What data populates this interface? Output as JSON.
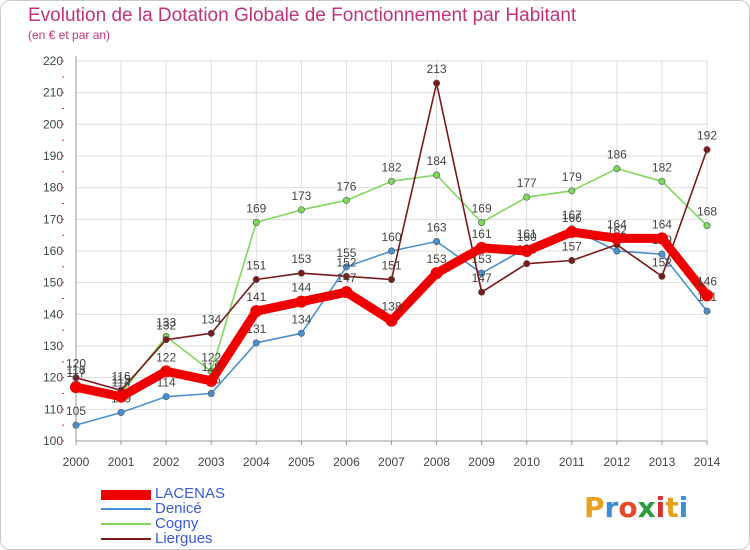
{
  "header": {
    "title": "Evolution de la Dotation Globale de Fonctionnement par Habitant",
    "subtitle": "(en € et par an)"
  },
  "logo_text": "Proxiti",
  "logo_colors": [
    "#e8a020",
    "#3a8fd8",
    "#e24a2a",
    "#2a9a3a",
    "#d83030",
    "#e8a020",
    "#3a8fd8"
  ],
  "chart_data": {
    "type": "line",
    "title": "Evolution de la Dotation Globale de Fonctionnement par Habitant",
    "subtitle": "(en € et par an)",
    "x": [
      "2000",
      "2001",
      "2002",
      "2003",
      "2004",
      "2005",
      "2006",
      "2007",
      "2008",
      "2009",
      "2010",
      "2011",
      "2012",
      "2013",
      "2014"
    ],
    "ylim": [
      100,
      220
    ],
    "yticks": [
      100,
      110,
      120,
      130,
      140,
      150,
      160,
      170,
      180,
      190,
      200,
      210,
      220
    ],
    "grid": true,
    "legend_position": "bottom-left",
    "series": [
      {
        "name": "LACENAS",
        "color": "#ee0000",
        "thick": true,
        "values": [
          117,
          114,
          122,
          119,
          141,
          144,
          147,
          138,
          153,
          161,
          160,
          166,
          164,
          164,
          146
        ]
      },
      {
        "name": "Denicé",
        "color": "#4a8fd0",
        "values": [
          105,
          109,
          114,
          115,
          131,
          134,
          155,
          160,
          163,
          153,
          161,
          167,
          160,
          159,
          141
        ]
      },
      {
        "name": "Cogny",
        "color": "#7ed85a",
        "values": [
          118,
          115,
          133,
          122,
          169,
          173,
          176,
          182,
          184,
          169,
          177,
          179,
          186,
          182,
          168
        ]
      },
      {
        "name": "Liergues",
        "color": "#7a1a1a",
        "values": [
          120,
          116,
          132,
          134,
          151,
          153,
          152,
          151,
          213,
          147,
          156,
          157,
          162,
          152,
          192
        ]
      }
    ]
  }
}
